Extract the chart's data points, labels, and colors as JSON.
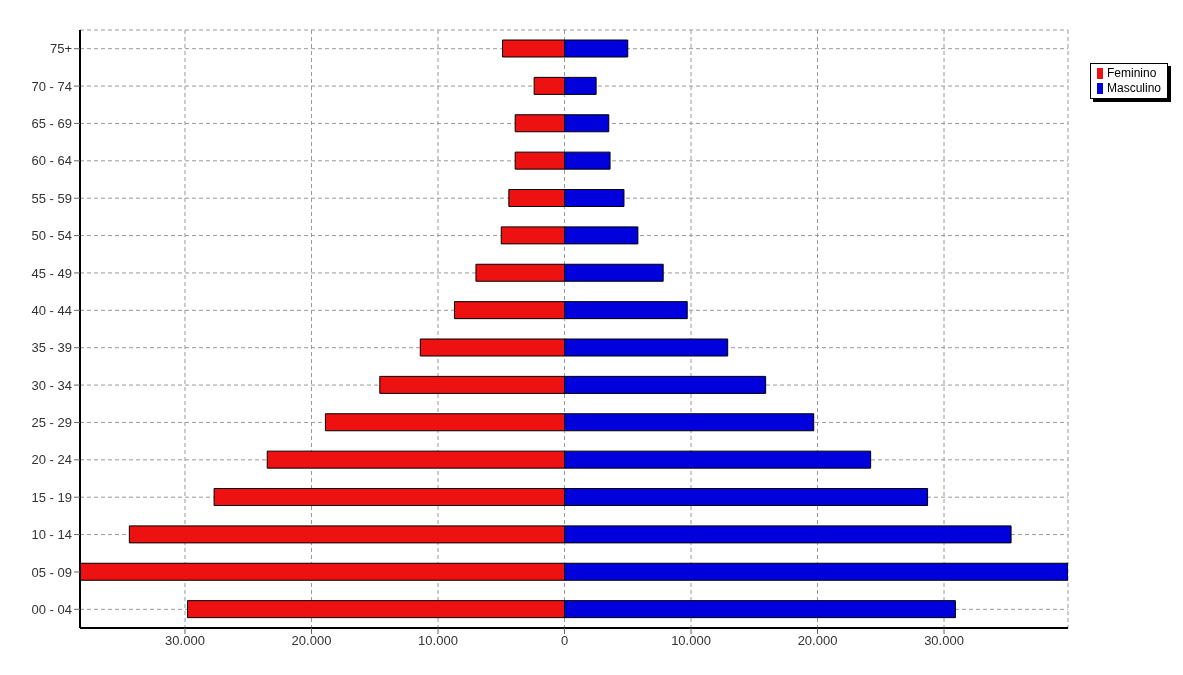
{
  "chart_data": {
    "type": "bar",
    "orientation": "horizontal",
    "categories": [
      "75+",
      "70 - 74",
      "65 - 69",
      "60 - 64",
      "55 - 59",
      "50 - 54",
      "45 - 49",
      "40 - 44",
      "35 - 39",
      "30 - 34",
      "25 - 29",
      "20 - 24",
      "15 - 19",
      "10 - 14",
      "05 - 09",
      "00 - 04"
    ],
    "series": [
      {
        "name": "Feminino",
        "color": "#ee1111",
        "values": [
          -4900,
          -2400,
          -3900,
          -3900,
          -4400,
          -5000,
          -7000,
          -8700,
          -11400,
          -14600,
          -18900,
          -23500,
          -27700,
          -34400,
          -38300,
          -29800
        ]
      },
      {
        "name": "Masculino",
        "color": "#0000dd",
        "values": [
          5000,
          2500,
          3500,
          3600,
          4700,
          5800,
          7800,
          9700,
          12900,
          15900,
          19700,
          24200,
          28700,
          35300,
          39800,
          30900
        ]
      }
    ],
    "xlim": [
      -38300,
      39800
    ],
    "xticks": [
      {
        "value": -30000,
        "label": "30.000"
      },
      {
        "value": -20000,
        "label": "20.000"
      },
      {
        "value": -10000,
        "label": "10.000"
      },
      0,
      {
        "value": 10000,
        "label": "10.000"
      },
      {
        "value": 20000,
        "label": "20.000"
      },
      {
        "value": 30000,
        "label": "30.000"
      }
    ],
    "stacked": true,
    "grid": true,
    "legend": "top right"
  }
}
